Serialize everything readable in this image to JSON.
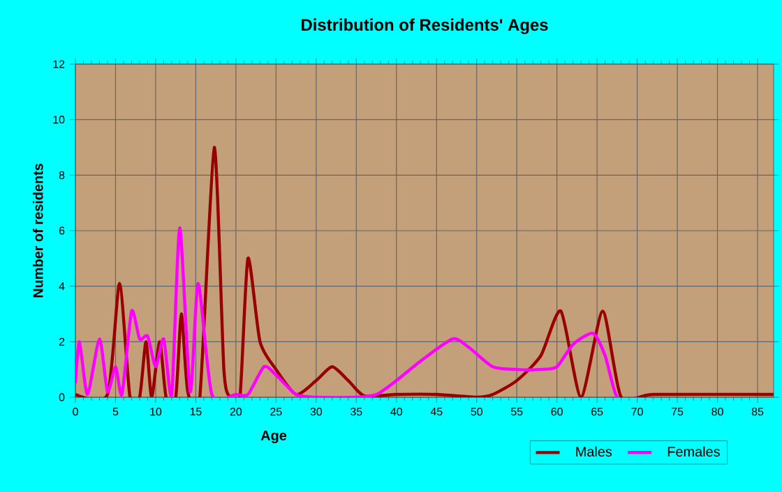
{
  "chart_data": {
    "type": "line",
    "title": "Distribution of Residents' Ages",
    "xlabel": "Age",
    "ylabel": "Number of residents",
    "xlim": [
      0,
      87
    ],
    "xticks": [
      0,
      5,
      10,
      15,
      20,
      25,
      30,
      35,
      40,
      45,
      50,
      55,
      60,
      65,
      70,
      75,
      80,
      85
    ],
    "ylim": [
      0,
      12
    ],
    "yticks": [
      0,
      2,
      4,
      6,
      8,
      10,
      12
    ],
    "grid": true,
    "legend": "bottom right",
    "marker": "none",
    "line_style": "solid",
    "series": [
      {
        "name": "Males",
        "color": "#990000",
        "x": [
          0,
          4,
          5.5,
          6.8,
          8,
          8.8,
          9.5,
          10.5,
          11.3,
          12.5,
          13.2,
          14,
          15.5,
          17.3,
          18.5,
          19.3,
          20.5,
          21.5,
          23,
          25,
          27.5,
          30,
          32,
          34,
          36,
          40,
          45,
          50,
          52,
          55,
          58,
          60.5,
          63,
          65.7,
          68,
          72,
          87
        ],
        "values": [
          0.1,
          0.1,
          4.1,
          0,
          0,
          2,
          0,
          2,
          0,
          0,
          3,
          0.2,
          0,
          9,
          1,
          0,
          0,
          5,
          2,
          1,
          0.1,
          0.6,
          1.1,
          0.6,
          0.05,
          0.1,
          0.1,
          0,
          0.1,
          0.6,
          1.5,
          3.1,
          0,
          3.1,
          0,
          0.1,
          0.1
        ]
      },
      {
        "name": "Females",
        "color": "#ff00ff",
        "x": [
          0,
          0.5,
          1.5,
          3,
          4,
          5,
          5.8,
          7,
          8,
          9,
          10,
          11,
          12,
          13,
          14.3,
          15.3,
          17,
          20,
          21.5,
          23.5,
          25,
          27.5,
          30,
          35,
          37.5,
          40,
          43,
          47,
          49,
          52,
          55,
          58,
          60,
          62,
          64.5,
          66,
          67.5,
          70
        ],
        "values": [
          0.5,
          2,
          0.1,
          2.1,
          0.2,
          1.1,
          0.1,
          3.1,
          2.1,
          2.2,
          1.1,
          2.1,
          0.1,
          6.1,
          0.2,
          4.1,
          0.1,
          0.1,
          0.1,
          1.1,
          0.8,
          0.1,
          0,
          0,
          0.1,
          0.6,
          1.3,
          2.1,
          1.8,
          1.1,
          1.0,
          1.0,
          1.1,
          1.9,
          2.3,
          1.5,
          0,
          0
        ]
      }
    ]
  }
}
